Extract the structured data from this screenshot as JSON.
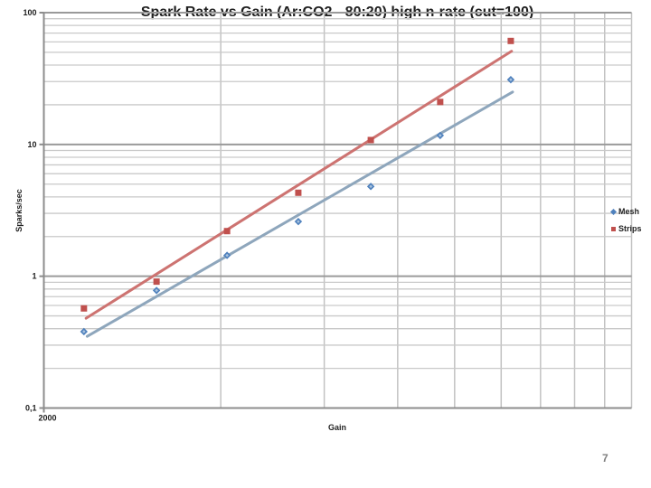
{
  "slide": {
    "page_number": "7"
  },
  "chart_data": {
    "type": "scatter",
    "title": "Spark Rate vs Gain (Ar:CO2 - 80:20) high n-rate (cut=100)",
    "xlabel": "Gain",
    "ylabel": "Sparks/sec",
    "x_scale": "log",
    "y_scale": "log",
    "xlim": [
      2000,
      20000
    ],
    "ylim": [
      0.1,
      100
    ],
    "grid": true,
    "legend_position": "right",
    "x_tick_labels": [
      {
        "value": 2000,
        "label": "2000"
      }
    ],
    "y_tick_labels": [
      {
        "value": 100,
        "label": "100"
      },
      {
        "value": 10,
        "label": "10"
      },
      {
        "value": 1,
        "label": "1"
      },
      {
        "value": 0.1,
        "label": "0,1"
      }
    ],
    "x_gridlines": [
      4000,
      6000,
      8000,
      10000,
      12000,
      14000,
      16000,
      18000,
      20000
    ],
    "x": [
      2340,
      3110,
      4100,
      5420,
      7200,
      9450,
      12460
    ],
    "series": [
      {
        "name": "Mesh",
        "marker": "diamond",
        "color": "#4f81bd",
        "marker_inner": "#aac3de",
        "line_color": "#8ea6bc",
        "values": [
          0.38,
          0.78,
          1.44,
          2.6,
          4.8,
          11.7,
          31
        ],
        "trendline": {
          "x1": 2370,
          "y1": 0.35,
          "x2": 12550,
          "y2": 25
        }
      },
      {
        "name": "Strips",
        "marker": "square",
        "color": "#c0504d",
        "marker_inner": "#c0504d",
        "line_color": "#cd7371",
        "values": [
          0.57,
          0.91,
          2.2,
          4.3,
          10.8,
          21,
          61
        ],
        "trendline": {
          "x1": 2360,
          "y1": 0.48,
          "x2": 12500,
          "y2": 51
        }
      }
    ],
    "colors": {
      "minor_grid": "#c9c9c9",
      "vertical_grid": "#c2c2c2",
      "major_grid": "#9a9a9a",
      "axis": "#8c8c8c",
      "text": "#1f1f1f",
      "page_number": "#7f7f7f"
    }
  }
}
